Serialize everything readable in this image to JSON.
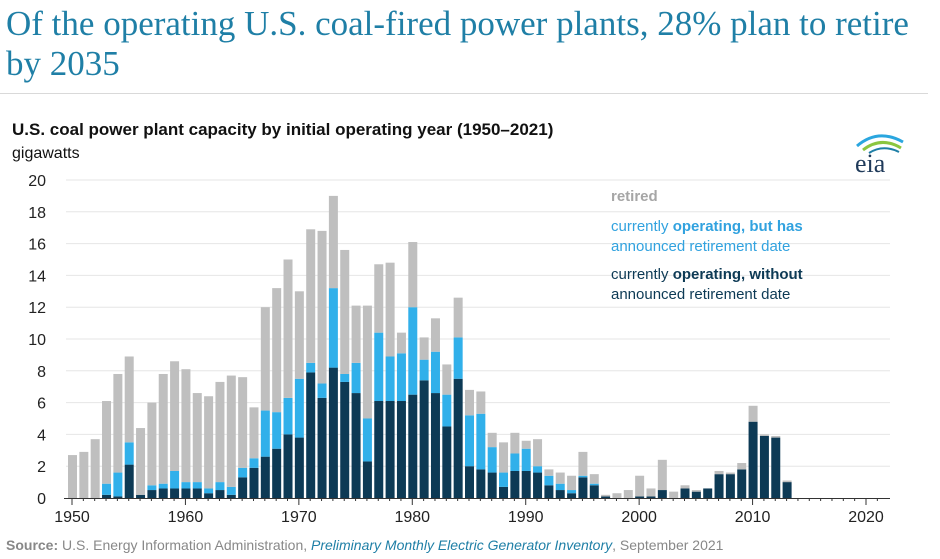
{
  "headline": "Of the operating U.S. coal-fired power plants, 28% plan to retire by 2035",
  "logo_text": "eia",
  "source": {
    "label": "Source:",
    "org": " U.S. Energy Information Administration, ",
    "publication": "Preliminary Monthly Electric Generator Inventory",
    "date": ", September 2021"
  },
  "legend": {
    "retired": "retired",
    "announced_line1_pre": "currently ",
    "announced_line1_bold": "operating, but has",
    "announced_line2": "announced retirement date",
    "without_line1_pre": "currently ",
    "without_line1_bold": "operating, without",
    "without_line2": "announced retirement date"
  },
  "colors": {
    "retired": "#bfbfbf",
    "announced": "#31b0ea",
    "without": "#0d3a55",
    "headline": "#1f7fa6"
  },
  "chart_data": {
    "type": "bar",
    "stacked": true,
    "title": "U.S. coal power plant capacity by initial operating year (1950–2021)",
    "ylabel": "gigawatts",
    "xlabel": "",
    "ylim": [
      0,
      20
    ],
    "yticks": [
      0,
      2,
      4,
      6,
      8,
      10,
      12,
      14,
      16,
      18,
      20
    ],
    "xlim": [
      1950,
      2021
    ],
    "xticks": [
      1950,
      1960,
      1970,
      1980,
      1990,
      2000,
      2010,
      2020
    ],
    "grid": "horizontal",
    "legend_position": "top-right",
    "x": [
      1950,
      1951,
      1952,
      1953,
      1954,
      1955,
      1956,
      1957,
      1958,
      1959,
      1960,
      1961,
      1962,
      1963,
      1964,
      1965,
      1966,
      1967,
      1968,
      1969,
      1970,
      1971,
      1972,
      1973,
      1974,
      1975,
      1976,
      1977,
      1978,
      1979,
      1980,
      1981,
      1982,
      1983,
      1984,
      1985,
      1986,
      1987,
      1988,
      1989,
      1990,
      1991,
      1992,
      1993,
      1994,
      1995,
      1996,
      1997,
      1998,
      1999,
      2000,
      2001,
      2002,
      2003,
      2004,
      2005,
      2006,
      2007,
      2008,
      2009,
      2010,
      2011,
      2012,
      2013,
      2014,
      2015,
      2016,
      2017,
      2018,
      2019,
      2020,
      2021
    ],
    "series": [
      {
        "name": "currently operating, without announced retirement date",
        "color": "#0d3a55",
        "values": [
          0,
          0,
          0,
          0.2,
          0.1,
          2.1,
          0.2,
          0.5,
          0.6,
          0.6,
          0.6,
          0.6,
          0.3,
          0.5,
          0.2,
          1.3,
          1.9,
          2.6,
          3.1,
          4,
          3.8,
          7.9,
          6.3,
          8.2,
          7.3,
          6.6,
          2.3,
          6.1,
          6.1,
          6.1,
          6.5,
          7.4,
          6.6,
          4.5,
          7.5,
          2,
          1.8,
          1.6,
          0.7,
          1.7,
          1.7,
          1.6,
          0.8,
          0.5,
          0.3,
          1.3,
          0.8,
          0.1,
          0,
          0,
          0.1,
          0.1,
          0.5,
          0,
          0.6,
          0.4,
          0.6,
          1.5,
          1.5,
          1.8,
          4.8,
          3.9,
          3.8,
          1,
          0,
          0,
          0,
          0,
          0,
          0,
          0,
          0
        ]
      },
      {
        "name": "currently operating, but has announced retirement date",
        "color": "#31b0ea",
        "values": [
          0,
          0,
          0,
          0.7,
          1.5,
          1.4,
          0,
          0.3,
          0.3,
          1.1,
          0.4,
          0.4,
          0.3,
          0.5,
          0.5,
          0.6,
          0.6,
          2.9,
          2.3,
          2.3,
          3.7,
          0.6,
          0.9,
          5,
          0.5,
          1.9,
          2.7,
          4.3,
          2.8,
          3,
          5.5,
          1.3,
          2.6,
          2,
          2.6,
          3.2,
          3.5,
          1.6,
          0.9,
          1.1,
          1.4,
          0.4,
          0.6,
          0.4,
          0.2,
          0.1,
          0.1,
          0,
          0,
          0,
          0,
          0,
          0,
          0,
          0,
          0,
          0,
          0,
          0,
          0,
          0,
          0,
          0,
          0,
          0,
          0,
          0,
          0,
          0,
          0,
          0,
          0
        ]
      },
      {
        "name": "retired",
        "color": "#bfbfbf",
        "values": [
          2.7,
          2.9,
          3.7,
          5.2,
          6.2,
          5.4,
          4.2,
          5.2,
          6.9,
          6.9,
          7.1,
          5.6,
          5.8,
          6.3,
          7,
          5.7,
          3.2,
          6.5,
          7.8,
          8.7,
          5.5,
          8.4,
          9.6,
          5.8,
          7.8,
          3.6,
          7.1,
          4.3,
          5.9,
          1.3,
          4.1,
          1.4,
          2.1,
          1.9,
          2.5,
          1.6,
          1.4,
          0.9,
          1.9,
          1.3,
          0.5,
          1.7,
          0.4,
          0.7,
          0.9,
          1.5,
          0.6,
          0.1,
          0.3,
          0.5,
          1.3,
          0.5,
          1.9,
          0.4,
          0.2,
          0.1,
          0,
          0.2,
          0.1,
          0.4,
          1,
          0.1,
          0.1,
          0.1,
          0,
          0,
          0,
          0,
          0,
          0,
          0,
          0
        ]
      }
    ]
  }
}
